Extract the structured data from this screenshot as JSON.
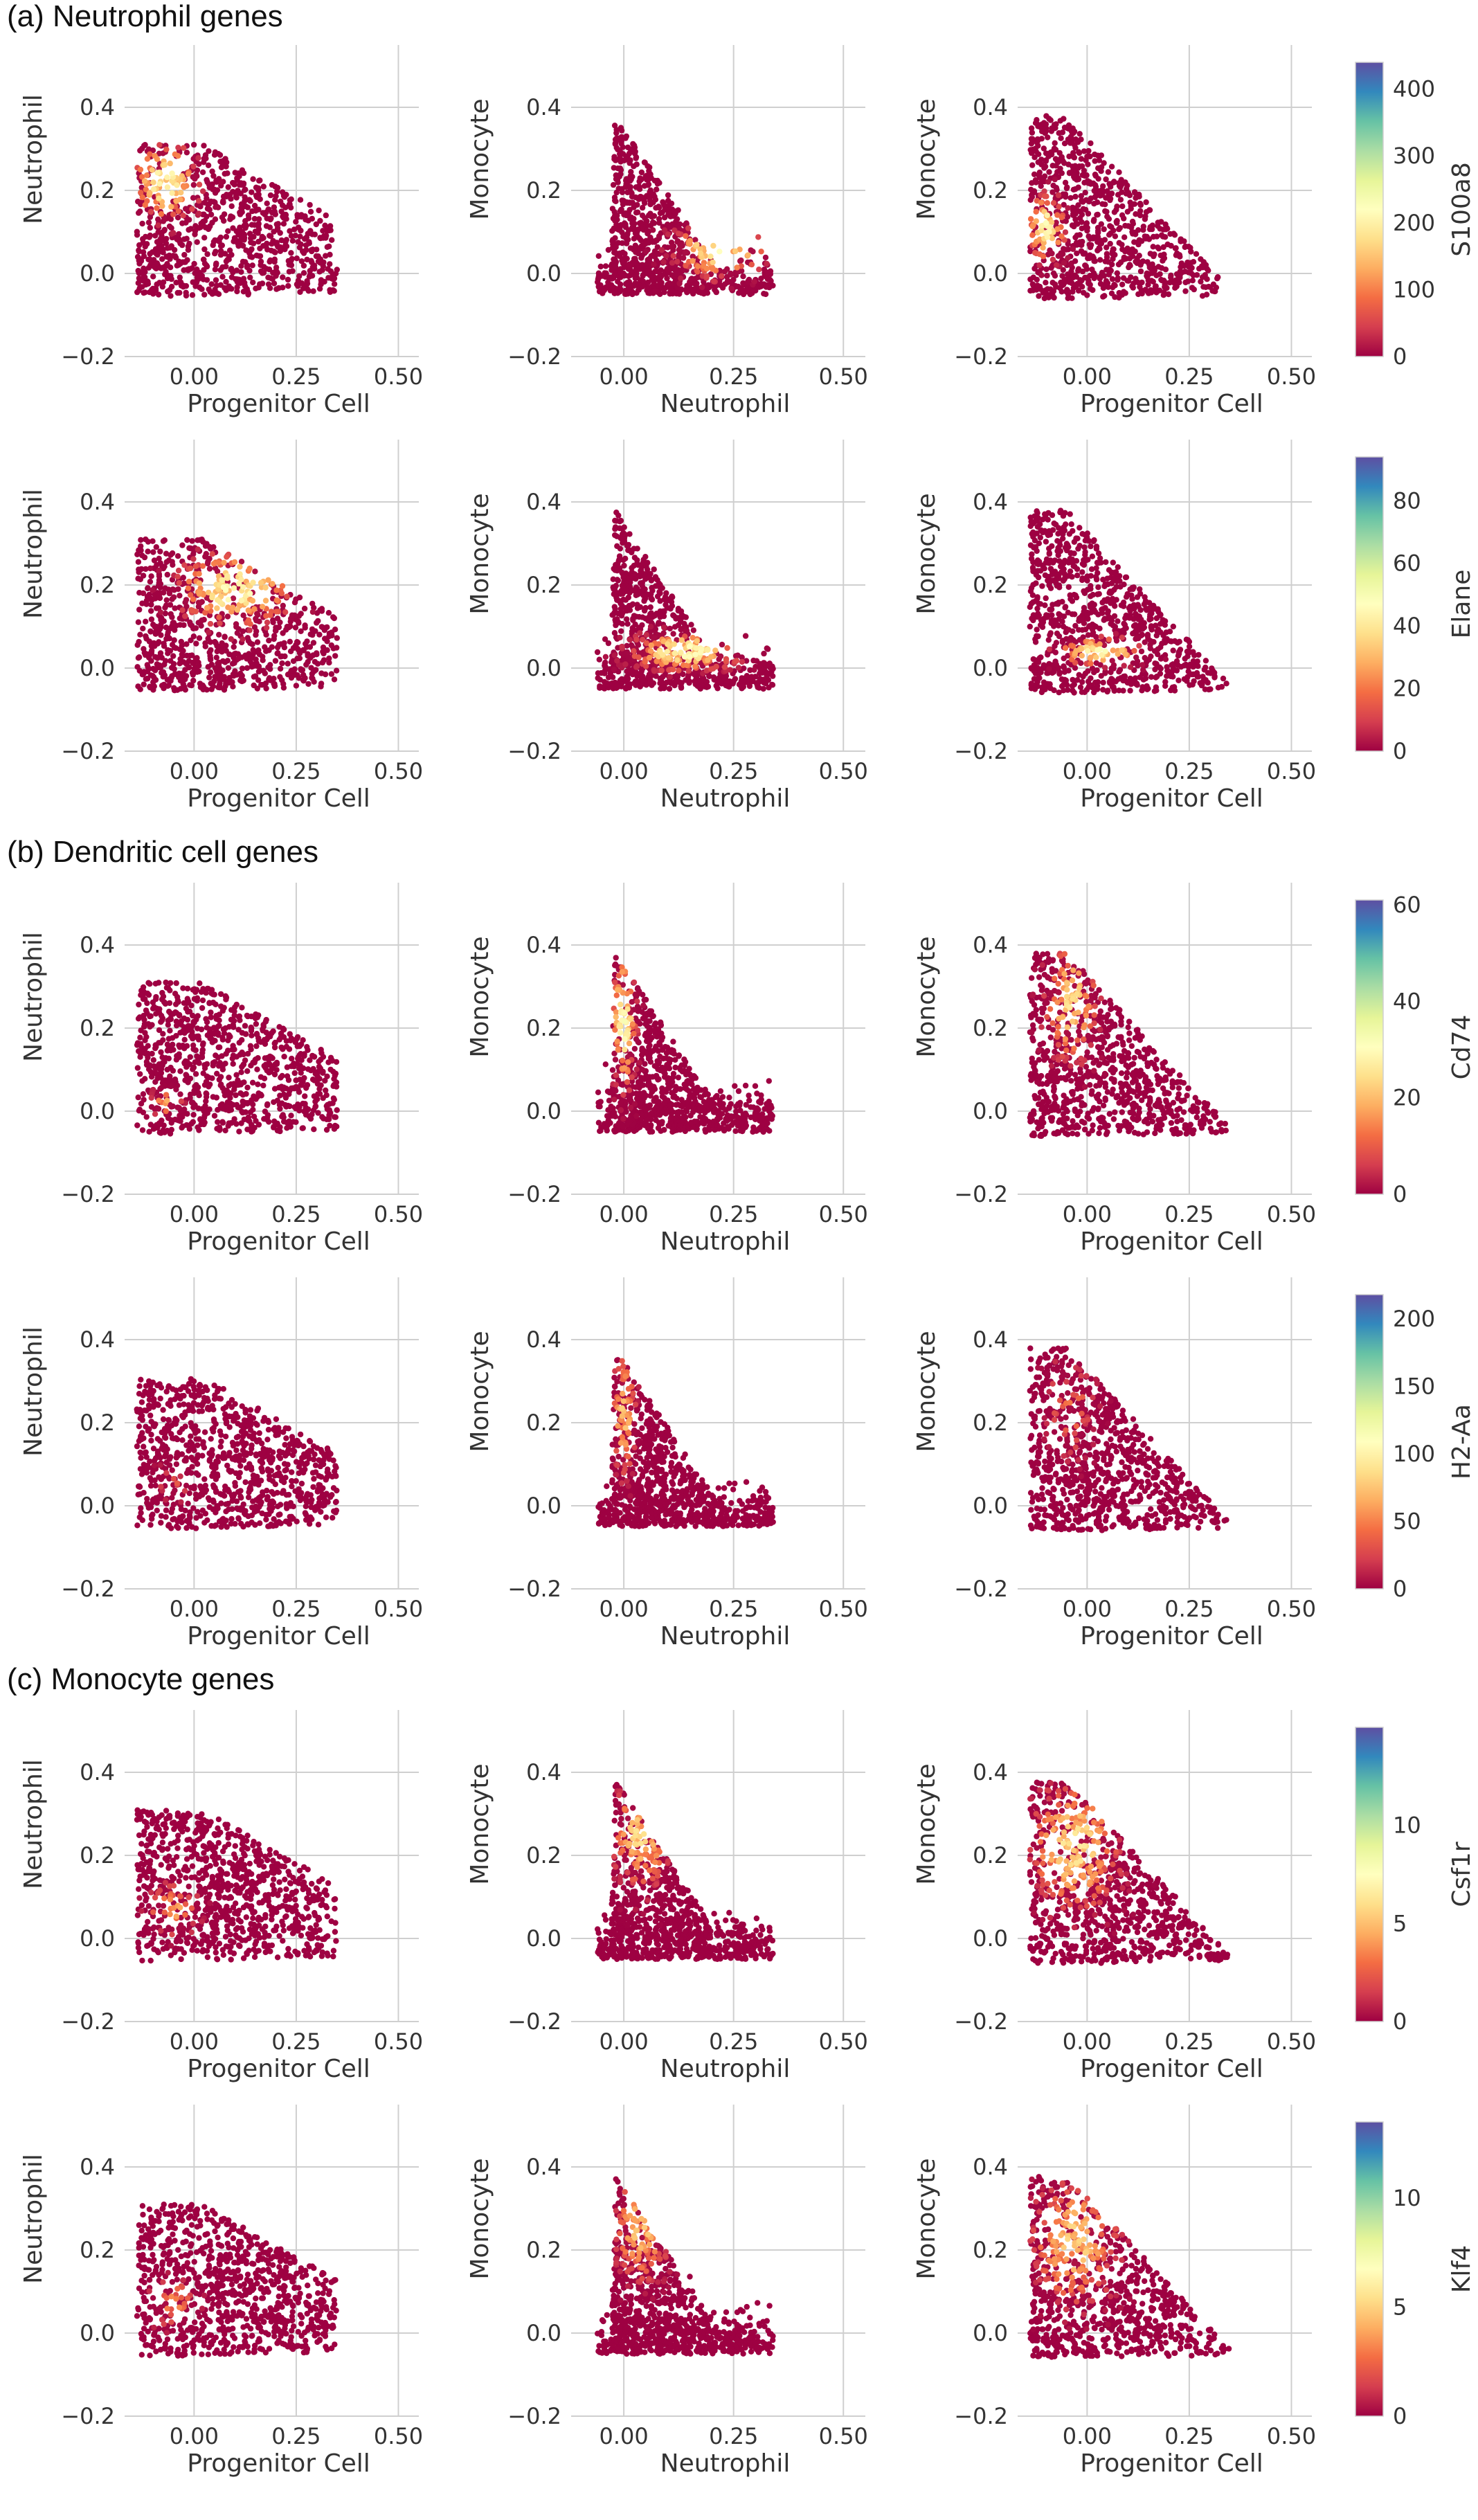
{
  "sections": [
    {
      "title": "(a) Neutrophil genes"
    },
    {
      "title": "(b) Dendritic cell genes"
    },
    {
      "title": "(c) Monocyte genes"
    }
  ],
  "axes_text": {
    "progenitor": "Progenitor Cell",
    "neutrophil": "Neutrophil",
    "monocyte": "Monocyte"
  },
  "ticks": {
    "x_pc": [
      "0.00",
      "0.25",
      "0.50"
    ],
    "x_neu": [
      "0.00",
      "0.25",
      "0.50"
    ],
    "y": [
      "−0.2",
      "0.0",
      "0.2",
      "0.4"
    ]
  },
  "colormap": [
    "#9e0142",
    "#d53e4f",
    "#f46d43",
    "#fdae61",
    "#fee08b",
    "#ffffbf",
    "#e6f598",
    "#abdda4",
    "#66c2a5",
    "#3288bd",
    "#5e4fa2"
  ],
  "chart_data": [
    {
      "type": "scatter",
      "gene": "S100a8",
      "section": 0,
      "colorbar_ticks": [
        "0",
        "100",
        "200",
        "300",
        "400"
      ],
      "vmax": 440,
      "panels": [
        {
          "x": "Progenitor Cell",
          "y": "Neutrophil",
          "xlim": [
            -0.17,
            0.55
          ],
          "ylim": [
            -0.2,
            0.55
          ]
        },
        {
          "x": "Neutrophil",
          "y": "Monocyte",
          "xlim": [
            -0.12,
            0.55
          ],
          "ylim": [
            -0.2,
            0.55
          ]
        },
        {
          "x": "Progenitor Cell",
          "y": "Monocyte",
          "xlim": [
            -0.17,
            0.55
          ],
          "ylim": [
            -0.2,
            0.55
          ]
        }
      ]
    },
    {
      "type": "scatter",
      "gene": "Elane",
      "section": 0,
      "colorbar_ticks": [
        "0",
        "20",
        "40",
        "60",
        "80"
      ],
      "vmax": 94,
      "panels": [
        {
          "x": "Progenitor Cell",
          "y": "Neutrophil",
          "xlim": [
            -0.17,
            0.55
          ],
          "ylim": [
            -0.2,
            0.55
          ]
        },
        {
          "x": "Neutrophil",
          "y": "Monocyte",
          "xlim": [
            -0.12,
            0.55
          ],
          "ylim": [
            -0.2,
            0.55
          ]
        },
        {
          "x": "Progenitor Cell",
          "y": "Monocyte",
          "xlim": [
            -0.17,
            0.55
          ],
          "ylim": [
            -0.2,
            0.55
          ]
        }
      ]
    },
    {
      "type": "scatter",
      "gene": "Cd74",
      "section": 1,
      "colorbar_ticks": [
        "0",
        "20",
        "40",
        "60"
      ],
      "vmax": 61,
      "panels": [
        {
          "x": "Progenitor Cell",
          "y": "Neutrophil",
          "xlim": [
            -0.17,
            0.55
          ],
          "ylim": [
            -0.2,
            0.55
          ]
        },
        {
          "x": "Neutrophil",
          "y": "Monocyte",
          "xlim": [
            -0.12,
            0.55
          ],
          "ylim": [
            -0.2,
            0.55
          ]
        },
        {
          "x": "Progenitor Cell",
          "y": "Monocyte",
          "xlim": [
            -0.17,
            0.55
          ],
          "ylim": [
            -0.2,
            0.55
          ]
        }
      ]
    },
    {
      "type": "scatter",
      "gene": "H2-Aa",
      "section": 1,
      "colorbar_ticks": [
        "0",
        "50",
        "100",
        "150",
        "200"
      ],
      "vmax": 218,
      "panels": [
        {
          "x": "Progenitor Cell",
          "y": "Neutrophil",
          "xlim": [
            -0.17,
            0.55
          ],
          "ylim": [
            -0.2,
            0.55
          ]
        },
        {
          "x": "Neutrophil",
          "y": "Monocyte",
          "xlim": [
            -0.12,
            0.55
          ],
          "ylim": [
            -0.2,
            0.55
          ]
        },
        {
          "x": "Progenitor Cell",
          "y": "Monocyte",
          "xlim": [
            -0.17,
            0.55
          ],
          "ylim": [
            -0.2,
            0.55
          ]
        }
      ]
    },
    {
      "type": "scatter",
      "gene": "Csf1r",
      "section": 2,
      "colorbar_ticks": [
        "0",
        "5",
        "10"
      ],
      "vmax": 15,
      "panels": [
        {
          "x": "Progenitor Cell",
          "y": "Neutrophil",
          "xlim": [
            -0.17,
            0.55
          ],
          "ylim": [
            -0.2,
            0.55
          ]
        },
        {
          "x": "Neutrophil",
          "y": "Monocyte",
          "xlim": [
            -0.12,
            0.55
          ],
          "ylim": [
            -0.2,
            0.55
          ]
        },
        {
          "x": "Progenitor Cell",
          "y": "Monocyte",
          "xlim": [
            -0.17,
            0.55
          ],
          "ylim": [
            -0.2,
            0.55
          ]
        }
      ]
    },
    {
      "type": "scatter",
      "gene": "Klf4",
      "section": 2,
      "colorbar_ticks": [
        "0",
        "5",
        "10"
      ],
      "vmax": 13.5,
      "panels": [
        {
          "x": "Progenitor Cell",
          "y": "Neutrophil",
          "xlim": [
            -0.17,
            0.55
          ],
          "ylim": [
            -0.2,
            0.55
          ]
        },
        {
          "x": "Neutrophil",
          "y": "Monocyte",
          "xlim": [
            -0.12,
            0.55
          ],
          "ylim": [
            -0.2,
            0.55
          ]
        },
        {
          "x": "Progenitor Cell",
          "y": "Monocyte",
          "xlim": [
            -0.17,
            0.55
          ],
          "ylim": [
            -0.2,
            0.55
          ]
        }
      ]
    }
  ]
}
